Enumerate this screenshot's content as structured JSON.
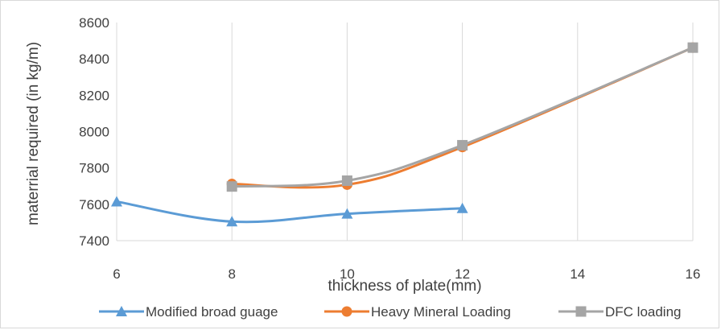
{
  "chart_data": {
    "type": "line",
    "title": "",
    "xlabel": "thickness of plate(mm)",
    "ylabel": "materrial required (in kg/m)",
    "xlim": [
      6,
      16
    ],
    "ylim": [
      7400,
      8600
    ],
    "x_ticks": [
      6,
      8,
      10,
      12,
      14,
      16
    ],
    "y_ticks": [
      7400,
      7600,
      7800,
      8000,
      8200,
      8400,
      8600
    ],
    "grid": "vertical",
    "legend_position": "bottom",
    "series": [
      {
        "name": "Modified broad guage",
        "color": "#5b9bd5",
        "marker": "triangle",
        "x": [
          6,
          8,
          10,
          12
        ],
        "y": [
          7615,
          7505,
          7548,
          7578
        ]
      },
      {
        "name": "Heavy Mineral Loading",
        "color": "#ed7d31",
        "marker": "circle",
        "x": [
          8,
          10,
          12,
          16
        ],
        "y": [
          7712,
          7708,
          7915,
          8462
        ]
      },
      {
        "name": "DFC loading",
        "color": "#a5a5a5",
        "marker": "square",
        "x": [
          8,
          10,
          12,
          16
        ],
        "y": [
          7698,
          7730,
          7925,
          8462
        ]
      }
    ]
  }
}
